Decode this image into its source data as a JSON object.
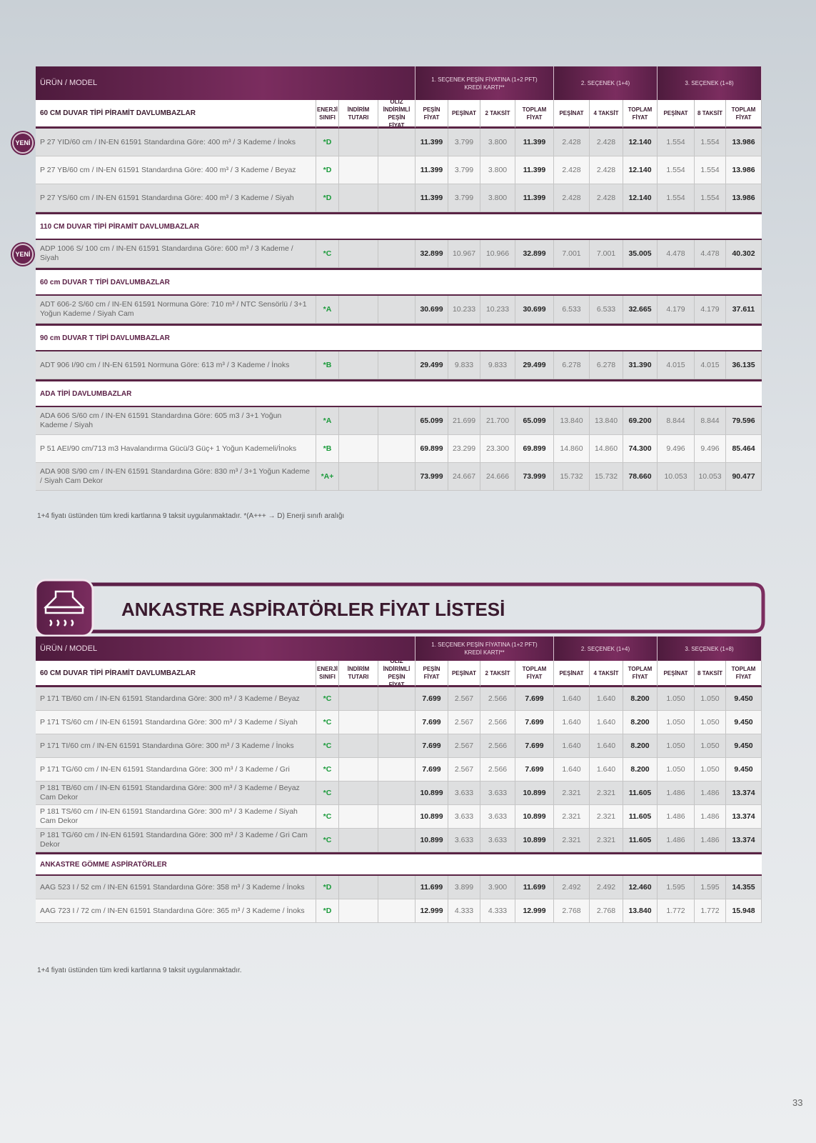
{
  "tables": [
    {
      "header": {
        "model": "ÜRÜN / MODEL",
        "options": [
          "1. SEÇENEK PEŞİN FİYATINA (1+2 PFT) KREDİ KARTI**",
          "2. SEÇENEK (1+4)",
          "3. SEÇENEK (1+8)"
        ]
      },
      "columns": [
        "ENERJİ SINIFI",
        "İNDİRİM TUTARI",
        "ÖLİZ İNDİRİMLİ PEŞİN FİYAT",
        "PEŞİN FİYAT",
        "PEŞİNAT",
        "2 TAKSİT",
        "TOPLAM FİYAT",
        "PEŞİNAT",
        "4 TAKSİT",
        "TOPLAM FİYAT",
        "PEŞİNAT",
        "8 TAKSİT",
        "TOPLAM FİYAT"
      ],
      "sections": [
        {
          "title": "60 CM DUVAR TİPİ PİRAMİT DAVLUMBAZLAR",
          "rows": [
            {
              "badge": "YENİ",
              "model": "P 27 YID/60 cm / IN-EN 61591 Standardına Göre: 400 m³ / 3 Kademe / İnoks",
              "energy": "*D",
              "prices": [
                "11.399",
                "3.799",
                "3.800",
                "11.399",
                "2.428",
                "2.428",
                "12.140",
                "1.554",
                "1.554",
                "13.986"
              ]
            },
            {
              "model": "P 27 YB/60 cm / IN-EN 61591 Standardına Göre: 400 m³ / 3 Kademe / Beyaz",
              "energy": "*D",
              "prices": [
                "11.399",
                "3.799",
                "3.800",
                "11.399",
                "2.428",
                "2.428",
                "12.140",
                "1.554",
                "1.554",
                "13.986"
              ]
            },
            {
              "model": "P 27 YS/60 cm / IN-EN 61591 Standardına Göre: 400 m³ / 3 Kademe / Siyah",
              "energy": "*D",
              "prices": [
                "11.399",
                "3.799",
                "3.800",
                "11.399",
                "2.428",
                "2.428",
                "12.140",
                "1.554",
                "1.554",
                "13.986"
              ]
            }
          ]
        },
        {
          "title": "110 CM DUVAR TİPİ PİRAMİT DAVLUMBAZLAR",
          "rows": [
            {
              "badge": "YENİ",
              "model": "ADP 1006 S/ 100 cm / IN-EN 61591 Standardına Göre: 600 m³ / 3 Kademe / Siyah",
              "energy": "*C",
              "prices": [
                "32.899",
                "10.967",
                "10.966",
                "32.899",
                "7.001",
                "7.001",
                "35.005",
                "4.478",
                "4.478",
                "40.302"
              ]
            }
          ]
        },
        {
          "title": "60 cm DUVAR T TİPİ DAVLUMBAZLAR",
          "rows": [
            {
              "model": "ADT 606-2 S/60 cm / IN-EN 61591 Normuna Göre: 710 m³ / NTC Sensörlü / 3+1 Yoğun Kademe / Siyah Cam",
              "energy": "*A",
              "prices": [
                "30.699",
                "10.233",
                "10.233",
                "30.699",
                "6.533",
                "6.533",
                "32.665",
                "4.179",
                "4.179",
                "37.611"
              ]
            }
          ]
        },
        {
          "title": "90 cm DUVAR T TİPİ DAVLUMBAZLAR",
          "rows": [
            {
              "model": "ADT 906 I/90 cm / IN-EN 61591 Normuna Göre: 613 m³ / 3 Kademe / İnoks",
              "energy": "*B",
              "prices": [
                "29.499",
                "9.833",
                "9.833",
                "29.499",
                "6.278",
                "6.278",
                "31.390",
                "4.015",
                "4.015",
                "36.135"
              ]
            }
          ]
        },
        {
          "title": "ADA TİPİ DAVLUMBAZLAR",
          "rows": [
            {
              "model": "ADA 606 S/60 cm / IN-EN 61591 Standardına Göre: 605 m3 / 3+1 Yoğun Kademe / Siyah",
              "energy": "*A",
              "prices": [
                "65.099",
                "21.699",
                "21.700",
                "65.099",
                "13.840",
                "13.840",
                "69.200",
                "8.844",
                "8.844",
                "79.596"
              ]
            },
            {
              "model": "P 51 AEI/90 cm/713 m3 Havalandırma Gücü/3 Güç+ 1 Yoğun Kademeli/İnoks",
              "energy": "*B",
              "prices": [
                "69.899",
                "23.299",
                "23.300",
                "69.899",
                "14.860",
                "14.860",
                "74.300",
                "9.496",
                "9.496",
                "85.464"
              ]
            },
            {
              "model": "ADA 908 S/90 cm / IN-EN 61591 Standardına Göre: 830 m³ / 3+1 Yoğun Kademe / Siyah Cam Dekor",
              "energy": "*A+",
              "prices": [
                "73.999",
                "24.667",
                "24.666",
                "73.999",
                "15.732",
                "15.732",
                "78.660",
                "10.053",
                "10.053",
                "90.477"
              ]
            }
          ]
        }
      ],
      "footnote": "1+4 fiyatı üstünden tüm kredi kartlarına 9 taksit uygulanmaktadır. *(A+++ → D) Enerji sınıfı aralığı"
    },
    {
      "header": {
        "model": "ÜRÜN / MODEL",
        "options": [
          "1. SEÇENEK PEŞİN FİYATINA (1+2 PFT) KREDİ KARTI**",
          "2. SEÇENEK (1+4)",
          "3. SEÇENEK (1+8)"
        ]
      },
      "columns": [
        "ENERJİ SINIFI",
        "İNDİRİM TUTARI",
        "ÖLİZ İNDİRİMLİ PEŞİN FİYAT",
        "PEŞİN FİYAT",
        "PEŞİNAT",
        "2 TAKSİT",
        "TOPLAM FİYAT",
        "PEŞİNAT",
        "4 TAKSİT",
        "TOPLAM FİYAT",
        "PEŞİNAT",
        "8 TAKSİT",
        "TOPLAM FİYAT"
      ],
      "sections": [
        {
          "title": "60 CM DUVAR TİPİ PİRAMİT DAVLUMBAZLAR",
          "rows": [
            {
              "model": "P 171 TB/60 cm / IN-EN 61591 Standardına Göre: 300 m³ / 3 Kademe / Beyaz",
              "energy": "*C",
              "prices": [
                "7.699",
                "2.567",
                "2.566",
                "7.699",
                "1.640",
                "1.640",
                "8.200",
                "1.050",
                "1.050",
                "9.450"
              ]
            },
            {
              "model": "P 171 TS/60 cm / IN-EN 61591 Standardına Göre: 300 m³ / 3 Kademe / Siyah",
              "energy": "*C",
              "prices": [
                "7.699",
                "2.567",
                "2.566",
                "7.699",
                "1.640",
                "1.640",
                "8.200",
                "1.050",
                "1.050",
                "9.450"
              ]
            },
            {
              "model": "P 171 TI/60 cm / IN-EN 61591 Standardına Göre: 300 m³ / 3 Kademe / İnoks",
              "energy": "*C",
              "prices": [
                "7.699",
                "2.567",
                "2.566",
                "7.699",
                "1.640",
                "1.640",
                "8.200",
                "1.050",
                "1.050",
                "9.450"
              ]
            },
            {
              "model": "P 171 TG/60 cm / IN-EN 61591 Standardına Göre: 300 m³ / 3 Kademe / Gri",
              "energy": "*C",
              "prices": [
                "7.699",
                "2.567",
                "2.566",
                "7.699",
                "1.640",
                "1.640",
                "8.200",
                "1.050",
                "1.050",
                "9.450"
              ]
            },
            {
              "model": "P 181 TB/60 cm / IN-EN 61591 Standardına Göre: 300 m³ / 3 Kademe / Beyaz Cam Dekor",
              "energy": "*C",
              "prices": [
                "10.899",
                "3.633",
                "3.633",
                "10.899",
                "2.321",
                "2.321",
                "11.605",
                "1.486",
                "1.486",
                "13.374"
              ]
            },
            {
              "model": "P 181 TS/60 cm / IN-EN 61591 Standardına Göre: 300 m³ / 3 Kademe / Siyah Cam Dekor",
              "energy": "*C",
              "prices": [
                "10.899",
                "3.633",
                "3.633",
                "10.899",
                "2.321",
                "2.321",
                "11.605",
                "1.486",
                "1.486",
                "13.374"
              ]
            },
            {
              "model": "P 181 TG/60 cm / IN-EN 61591 Standardına Göre: 300 m³ / 3 Kademe / Gri Cam Dekor",
              "energy": "*C",
              "prices": [
                "10.899",
                "3.633",
                "3.633",
                "10.899",
                "2.321",
                "2.321",
                "11.605",
                "1.486",
                "1.486",
                "13.374"
              ]
            }
          ]
        },
        {
          "title": "ANKASTRE GÖMME ASPİRATÖRLER",
          "rows": [
            {
              "model": "AAG 523 I / 52 cm / IN-EN 61591 Standardına Göre: 358 m³ / 3 Kademe / İnoks",
              "energy": "*D",
              "prices": [
                "11.699",
                "3.899",
                "3.900",
                "11.699",
                "2.492",
                "2.492",
                "12.460",
                "1.595",
                "1.595",
                "14.355"
              ]
            },
            {
              "model": "AAG 723 I / 72 cm / IN-EN 61591 Standardına Göre: 365 m³ / 3 Kademe / İnoks",
              "energy": "*D",
              "prices": [
                "12.999",
                "4.333",
                "4.333",
                "12.999",
                "2.768",
                "2.768",
                "13.840",
                "1.772",
                "1.772",
                "15.948"
              ]
            }
          ]
        }
      ],
      "footnote": "1+4 fiyatı üstünden tüm kredi kartlarına 9 taksit uygulanmaktadır."
    }
  ],
  "banner": {
    "title": "ANKASTRE ASPİRATÖRLER FİYAT LİSTESİ"
  },
  "page_number": "33"
}
